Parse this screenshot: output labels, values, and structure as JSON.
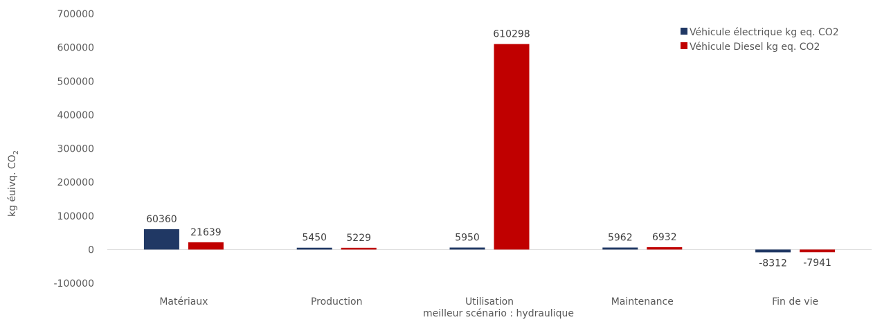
{
  "chart_data": {
    "type": "bar",
    "categories": [
      "Matériaux",
      "Production",
      "Utilisation",
      "Maintenance",
      "Fin de vie"
    ],
    "series": [
      {
        "name": "Véhicule électrique kg eq. CO2",
        "color": "#203864",
        "values": [
          60360,
          5450,
          5950,
          5962,
          -8312
        ]
      },
      {
        "name": "Véhicule Diesel kg eq. CO2",
        "color": "#C00000",
        "values": [
          21639,
          5229,
          610298,
          6932,
          -7941
        ]
      }
    ],
    "data_labels": [
      [
        "60360",
        "5450",
        "5950",
        "5962",
        "-8312"
      ],
      [
        "21639",
        "5229",
        "610298",
        "6932",
        "-7941"
      ]
    ],
    "xlabel": "meilleur scénario : hydraulique",
    "ylabel": "kg éuivq. CO",
    "ylabel_subscript": "2",
    "ylim": [
      -100000,
      700000
    ],
    "yticks": [
      -100000,
      0,
      100000,
      200000,
      300000,
      400000,
      500000,
      600000,
      700000
    ],
    "ytick_labels": [
      "-100000",
      "0",
      "100000",
      "200000",
      "300000",
      "400000",
      "500000",
      "600000",
      "700000"
    ],
    "grid": false,
    "legend_position": "top-right"
  }
}
